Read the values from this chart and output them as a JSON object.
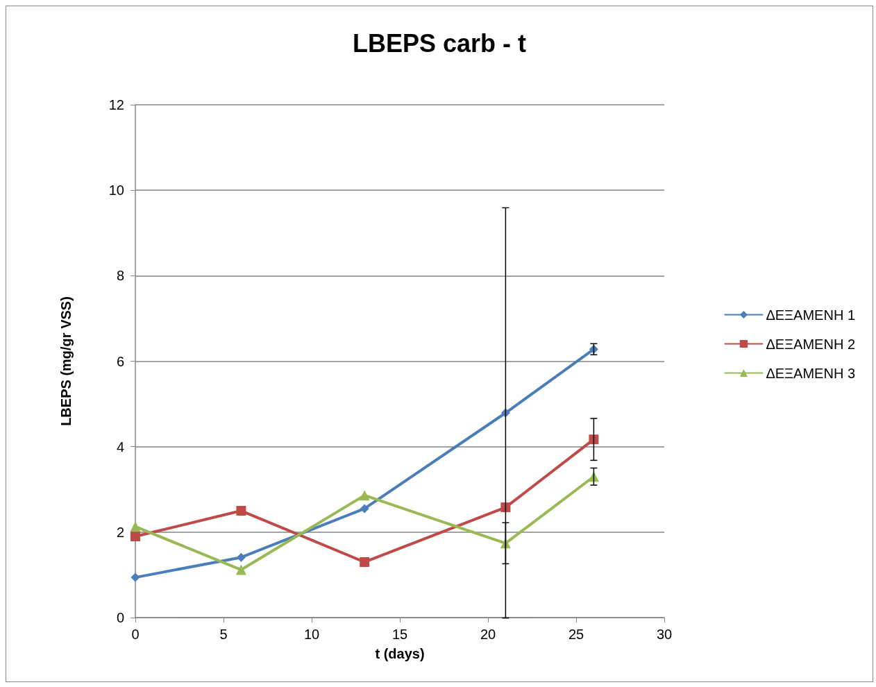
{
  "chart_data": {
    "type": "line",
    "title": "LBEPS carb - t",
    "xlabel": "t (days)",
    "ylabel": "LBEPS (mg/gr VSS)",
    "x": [
      0,
      6,
      13,
      21,
      26
    ],
    "series": [
      {
        "name": "ΔΕΞΑΜΕΝΗ 1",
        "color": "#4a7ebb",
        "marker": "diamond",
        "values": [
          0.94,
          1.41,
          2.55,
          4.79,
          6.28
        ],
        "errors": [
          null,
          null,
          null,
          4.8,
          0.13
        ]
      },
      {
        "name": "ΔΕΞΑΜΕΝΗ 2",
        "color": "#be4b48",
        "marker": "square",
        "values": [
          1.9,
          2.5,
          1.3,
          2.58,
          4.17
        ],
        "errors": [
          null,
          null,
          null,
          null,
          0.49
        ]
      },
      {
        "name": "ΔΕΞΑΜΕΝΗ 3",
        "color": "#98b954",
        "marker": "triangle",
        "values": [
          2.13,
          1.12,
          2.86,
          1.74,
          3.3
        ],
        "errors": [
          null,
          null,
          null,
          0.48,
          0.2
        ]
      }
    ],
    "xlim": [
      0,
      30
    ],
    "xticks": [
      0,
      5,
      10,
      15,
      20,
      25,
      30
    ],
    "ylim": [
      0,
      12
    ],
    "yticks": [
      0,
      2,
      4,
      6,
      8,
      10,
      12
    ],
    "grid": "y",
    "legend": "right",
    "line_style": "solid"
  }
}
